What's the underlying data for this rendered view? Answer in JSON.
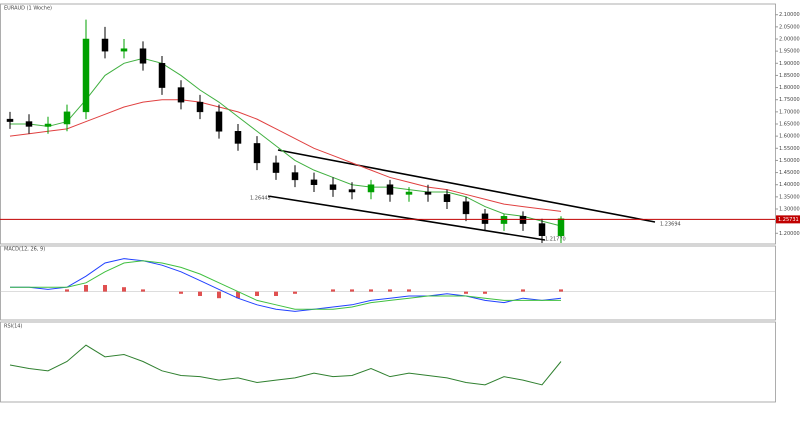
{
  "chart_data": [
    {
      "type": "candlestick",
      "title": "EURAUD (1 Woche)",
      "open": [
        1.67,
        1.66,
        1.64,
        1.65,
        1.7,
        2.0,
        1.95,
        1.96,
        1.9,
        1.8,
        1.74,
        1.7,
        1.62,
        1.57,
        1.49,
        1.45,
        1.42,
        1.4,
        1.38,
        1.37,
        1.4,
        1.36,
        1.37,
        1.36,
        1.33,
        1.28,
        1.24,
        1.27,
        1.24,
        1.19
      ],
      "high": [
        1.7,
        1.69,
        1.68,
        1.73,
        2.08,
        2.05,
        2.0,
        1.99,
        1.93,
        1.83,
        1.77,
        1.73,
        1.65,
        1.6,
        1.52,
        1.48,
        1.45,
        1.43,
        1.41,
        1.42,
        1.42,
        1.39,
        1.4,
        1.38,
        1.35,
        1.3,
        1.28,
        1.29,
        1.26,
        1.27
      ],
      "low": [
        1.63,
        1.61,
        1.61,
        1.62,
        1.67,
        1.92,
        1.92,
        1.87,
        1.77,
        1.71,
        1.67,
        1.59,
        1.54,
        1.46,
        1.42,
        1.39,
        1.37,
        1.35,
        1.34,
        1.34,
        1.33,
        1.33,
        1.33,
        1.3,
        1.25,
        1.21,
        1.21,
        1.21,
        1.16,
        1.16
      ],
      "close": [
        1.66,
        1.64,
        1.65,
        1.7,
        2.0,
        1.95,
        1.96,
        1.9,
        1.8,
        1.74,
        1.7,
        1.62,
        1.57,
        1.49,
        1.45,
        1.42,
        1.4,
        1.38,
        1.37,
        1.4,
        1.36,
        1.37,
        1.36,
        1.33,
        1.28,
        1.24,
        1.27,
        1.24,
        1.19,
        1.26
      ],
      "bull_color": "#00a000",
      "bear_color": "#000000",
      "series": [
        {
          "color": "#e04040",
          "values": [
            1.6,
            1.61,
            1.62,
            1.63,
            1.66,
            1.69,
            1.72,
            1.74,
            1.75,
            1.75,
            1.74,
            1.72,
            1.7,
            1.67,
            1.63,
            1.59,
            1.55,
            1.52,
            1.49,
            1.46,
            1.43,
            1.41,
            1.39,
            1.38,
            1.36,
            1.34,
            1.32,
            1.31,
            1.3,
            1.29
          ]
        },
        {
          "color": "#40b040",
          "values": [
            1.65,
            1.65,
            1.64,
            1.66,
            1.75,
            1.85,
            1.9,
            1.92,
            1.9,
            1.85,
            1.79,
            1.74,
            1.68,
            1.62,
            1.56,
            1.5,
            1.46,
            1.43,
            1.4,
            1.39,
            1.39,
            1.38,
            1.37,
            1.37,
            1.35,
            1.31,
            1.28,
            1.27,
            1.25,
            1.23
          ]
        }
      ],
      "ylim": [
        1.16,
        2.14
      ],
      "yticks": [
        {
          "value": 1.2,
          "label": "1.20000"
        },
        {
          "value": 1.25,
          "label": "1.25000"
        },
        {
          "value": 1.3,
          "label": "1.30000"
        },
        {
          "value": 1.35,
          "label": "1.35000"
        },
        {
          "value": 1.4,
          "label": "1.40000"
        },
        {
          "value": 1.45,
          "label": "1.45000"
        },
        {
          "value": 1.5,
          "label": "1.50000"
        },
        {
          "value": 1.55,
          "label": "1.55000"
        },
        {
          "value": 1.6,
          "label": "1.60000"
        },
        {
          "value": 1.65,
          "label": "1.65000"
        },
        {
          "value": 1.7,
          "label": "1.70000"
        },
        {
          "value": 1.75,
          "label": "1.75000"
        },
        {
          "value": 1.8,
          "label": "1.80000"
        },
        {
          "value": 1.85,
          "label": "1.85000"
        },
        {
          "value": 1.9,
          "label": "1.90000"
        },
        {
          "value": 1.95,
          "label": "1.95000"
        },
        {
          "value": 2.0,
          "label": "2.00000"
        },
        {
          "value": 2.05,
          "label": "2.05000"
        },
        {
          "value": 2.1,
          "label": "2.10000"
        }
      ],
      "price_line": 1.25731,
      "annotations": [
        "1.26445",
        "1.23694",
        "1.21770"
      ]
    },
    {
      "type": "macd",
      "title": "MACD(12, 26, 9)",
      "macd": [
        0.02,
        0.02,
        0.01,
        0.02,
        0.07,
        0.13,
        0.15,
        0.14,
        0.12,
        0.09,
        0.05,
        0.01,
        -0.03,
        -0.06,
        -0.08,
        -0.09,
        -0.08,
        -0.07,
        -0.06,
        -0.04,
        -0.03,
        -0.02,
        -0.02,
        -0.01,
        -0.02,
        -0.04,
        -0.05,
        -0.03,
        -0.04,
        -0.03
      ],
      "signal": [
        0.02,
        0.02,
        0.02,
        0.02,
        0.04,
        0.09,
        0.13,
        0.14,
        0.13,
        0.11,
        0.08,
        0.04,
        0,
        -0.04,
        -0.06,
        -0.08,
        -0.08,
        -0.08,
        -0.07,
        -0.05,
        -0.04,
        -0.03,
        -0.02,
        -0.02,
        -0.02,
        -0.03,
        -0.04,
        -0.04,
        -0.04,
        -0.04
      ],
      "histogram": [
        0,
        0,
        0,
        0.01,
        0.03,
        0.03,
        0.02,
        0.01,
        0,
        -0.01,
        -0.02,
        -0.03,
        -0.03,
        -0.02,
        -0.02,
        -0.01,
        0,
        0.01,
        0.01,
        0.01,
        0.01,
        0.01,
        0,
        0,
        -0.01,
        -0.01,
        0,
        0.01,
        0,
        0.01
      ],
      "macd_color": "#2040ff",
      "signal_color": "#40c040",
      "histogram_color": "#e05050",
      "ylim": [
        -0.12,
        0.18
      ]
    },
    {
      "type": "line",
      "title": "RSI(14)",
      "values": [
        55,
        52,
        50,
        58,
        72,
        62,
        64,
        58,
        50,
        46,
        45,
        42,
        44,
        40,
        42,
        44,
        48,
        45,
        46,
        52,
        45,
        48,
        46,
        44,
        40,
        38,
        45,
        42,
        38,
        58
      ],
      "color": "#308030",
      "ylim": [
        25,
        85
      ]
    }
  ]
}
